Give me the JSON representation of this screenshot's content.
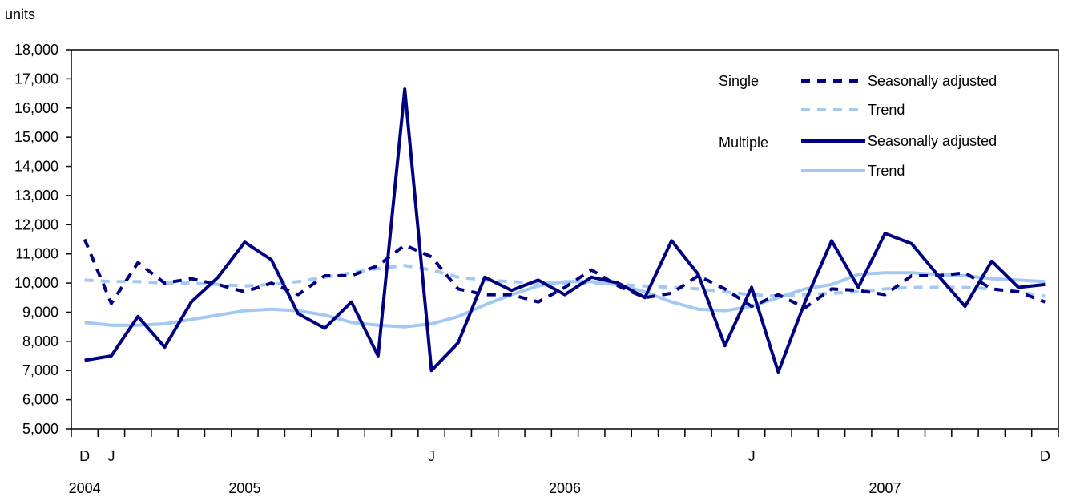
{
  "chart_data": {
    "type": "line",
    "y_unit_label": "units",
    "ylim": [
      5000,
      18000
    ],
    "y_ticks": [
      5000,
      6000,
      7000,
      8000,
      9000,
      10000,
      11000,
      12000,
      13000,
      14000,
      15000,
      16000,
      17000,
      18000
    ],
    "y_tick_labels": [
      "5,000",
      "6,000",
      "7,000",
      "8,000",
      "9,000",
      "10,000",
      "11,000",
      "12,000",
      "13,000",
      "14,000",
      "15,000",
      "16,000",
      "17,000",
      "18,000"
    ],
    "x": [
      "2004-12",
      "2005-01",
      "2005-02",
      "2005-03",
      "2005-04",
      "2005-05",
      "2005-06",
      "2005-07",
      "2005-08",
      "2005-09",
      "2005-10",
      "2005-11",
      "2005-12",
      "2006-01",
      "2006-02",
      "2006-03",
      "2006-04",
      "2006-05",
      "2006-06",
      "2006-07",
      "2006-08",
      "2006-09",
      "2006-10",
      "2006-11",
      "2006-12",
      "2007-01",
      "2007-02",
      "2007-03",
      "2007-04",
      "2007-05",
      "2007-06",
      "2007-07",
      "2007-08",
      "2007-09",
      "2007-10",
      "2007-11",
      "2007-12"
    ],
    "month_labels": [
      {
        "month": "2004-12",
        "text": "D"
      },
      {
        "month": "2005-01",
        "text": "J"
      },
      {
        "month": "2006-01",
        "text": "J"
      },
      {
        "month": "2007-01",
        "text": "J"
      },
      {
        "month": "2007-12",
        "text": "D"
      }
    ],
    "year_labels": [
      {
        "month": "2004-12",
        "text": "2004"
      },
      {
        "month": "2005-06",
        "text": "2005"
      },
      {
        "month": "2006-06",
        "text": "2006"
      },
      {
        "month": "2007-06",
        "text": "2007"
      }
    ],
    "legend": {
      "group_single": "Single",
      "group_multiple": "Multiple",
      "placement": "top-right"
    },
    "series": [
      {
        "name": "Seasonally adjusted",
        "group": "Single",
        "style": "dashed",
        "color": "#000080",
        "values": [
          11500,
          9300,
          10700,
          10000,
          10150,
          9950,
          9700,
          10000,
          9600,
          10250,
          10250,
          10600,
          11300,
          10900,
          9800,
          9600,
          9600,
          9350,
          9850,
          10450,
          9900,
          9500,
          9650,
          10250,
          9800,
          9200,
          9600,
          9150,
          9800,
          9750,
          9600,
          10250,
          10250,
          10350,
          9800,
          9700,
          9350
        ]
      },
      {
        "name": "Trend",
        "group": "Single",
        "style": "dashed",
        "color": "#a3c8f2",
        "values": [
          10100,
          10050,
          10050,
          10000,
          10000,
          9950,
          9900,
          9950,
          10050,
          10200,
          10350,
          10500,
          10600,
          10450,
          10200,
          10100,
          10050,
          10000,
          10000,
          10000,
          9950,
          9900,
          9850,
          9800,
          9700,
          9600,
          9550,
          9600,
          9650,
          9700,
          9800,
          9850,
          9850,
          9850,
          9800,
          9700,
          9550
        ]
      },
      {
        "name": "Seasonally adjusted",
        "group": "Multiple",
        "style": "solid",
        "color": "#000080",
        "values": [
          7350,
          7500,
          8850,
          7800,
          9350,
          10200,
          11400,
          10800,
          8950,
          8450,
          9350,
          7500,
          16650,
          7000,
          7950,
          10200,
          9750,
          10100,
          9600,
          10200,
          10000,
          9500,
          11450,
          10300,
          7850,
          9850,
          6950,
          9350,
          11450,
          9850,
          11700,
          11350,
          10250,
          9200,
          10750,
          9850,
          9950
        ]
      },
      {
        "name": "Trend",
        "group": "Multiple",
        "style": "solid",
        "color": "#a3c8f2",
        "values": [
          8650,
          8550,
          8550,
          8600,
          8750,
          8900,
          9050,
          9100,
          9050,
          8900,
          8650,
          8550,
          8500,
          8600,
          8850,
          9250,
          9600,
          9900,
          10050,
          10050,
          9950,
          9700,
          9350,
          9100,
          9050,
          9200,
          9500,
          9800,
          9950,
          10300,
          10350,
          10350,
          10300,
          10250,
          10150,
          10100,
          10050
        ]
      }
    ]
  }
}
